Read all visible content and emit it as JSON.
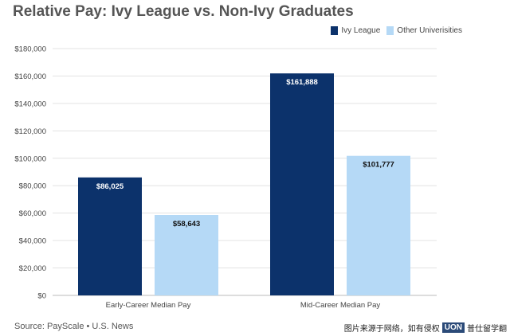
{
  "chart_data": {
    "type": "bar",
    "title": "Relative Pay: Ivy League vs. Non-Ivy Graduates",
    "categories": [
      "Early-Career Median Pay",
      "Mid-Career Median Pay"
    ],
    "series": [
      {
        "name": "Ivy League",
        "color": "#0c326b",
        "values": [
          86025,
          161888
        ],
        "labels": [
          "$86,025",
          "$161,888"
        ],
        "label_color": "#ffffff"
      },
      {
        "name": "Other Univerisities",
        "color": "#b5d9f6",
        "values": [
          58643,
          101777
        ],
        "labels": [
          "$58,643",
          "$101,777"
        ],
        "label_color": "#111111"
      }
    ],
    "ylim": [
      0,
      180000
    ],
    "yticks": [
      0,
      20000,
      40000,
      60000,
      80000,
      100000,
      120000,
      140000,
      160000,
      180000
    ],
    "ytick_labels": [
      "$0",
      "$20,000",
      "$40,000",
      "$60,000",
      "$80,000",
      "$100,000",
      "$120,000",
      "$140,000",
      "$160,000",
      "$180,000"
    ],
    "xlabel": "",
    "ylabel": "",
    "grid": true,
    "legend_position": "top-right"
  },
  "source": "Source: PayScale • U.S. News",
  "watermark": {
    "text_before": "图片来源于网络，如有侵权",
    "logo": "UON",
    "text_after": "普仕留学翻"
  }
}
